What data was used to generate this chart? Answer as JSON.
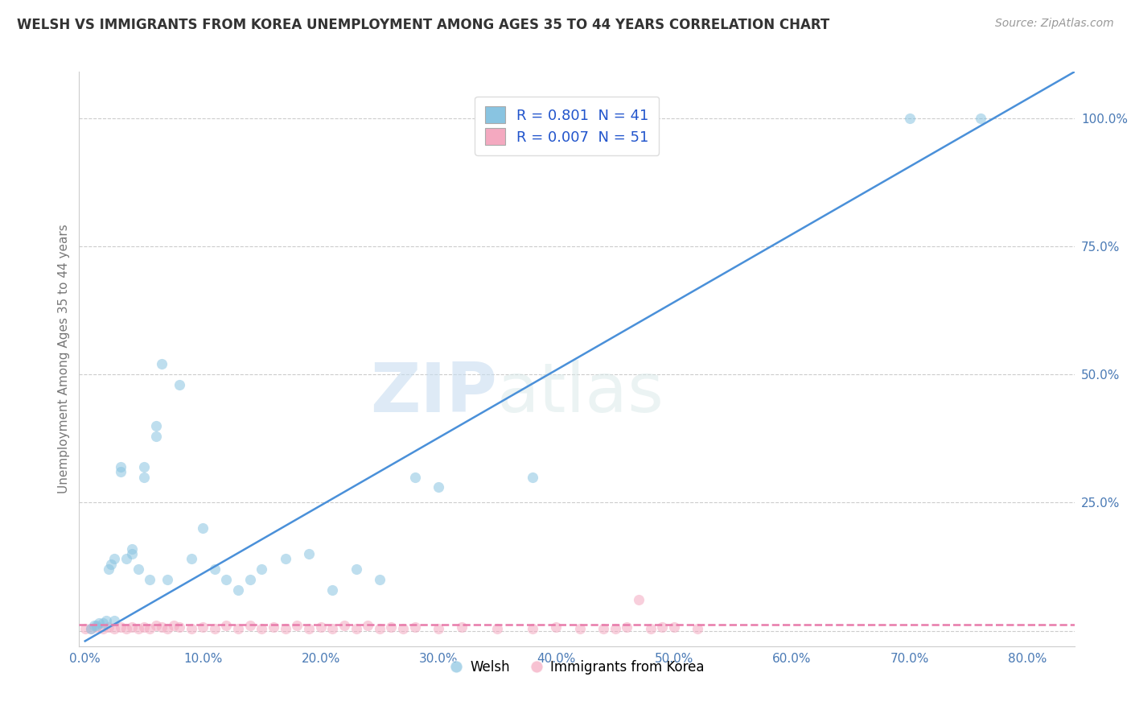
{
  "title": "WELSH VS IMMIGRANTS FROM KOREA UNEMPLOYMENT AMONG AGES 35 TO 44 YEARS CORRELATION CHART",
  "source": "Source: ZipAtlas.com",
  "ylabel": "Unemployment Among Ages 35 to 44 years",
  "x_ticks": [
    0.0,
    0.1,
    0.2,
    0.3,
    0.4,
    0.5,
    0.6,
    0.7,
    0.8
  ],
  "x_tick_labels": [
    "0.0%",
    "10.0%",
    "20.0%",
    "30.0%",
    "40.0%",
    "50.0%",
    "60.0%",
    "70.0%",
    "80.0%"
  ],
  "y_ticks": [
    0.0,
    0.25,
    0.5,
    0.75,
    1.0
  ],
  "y_tick_labels": [
    "",
    "25.0%",
    "50.0%",
    "75.0%",
    "100.0%"
  ],
  "xlim": [
    -0.005,
    0.84
  ],
  "ylim": [
    -0.03,
    1.09
  ],
  "welsh_R": 0.801,
  "welsh_N": 41,
  "korean_R": 0.007,
  "korean_N": 51,
  "welsh_color": "#89c4e1",
  "korean_color": "#f4a9c0",
  "welsh_line_color": "#4a90d9",
  "korean_line_color": "#e87aaa",
  "background_color": "#ffffff",
  "grid_color": "#cccccc",
  "watermark_zip": "ZIP",
  "watermark_atlas": "atlas",
  "welsh_scatter_x": [
    0.005,
    0.008,
    0.01,
    0.012,
    0.015,
    0.018,
    0.02,
    0.022,
    0.025,
    0.025,
    0.03,
    0.03,
    0.035,
    0.04,
    0.04,
    0.045,
    0.05,
    0.05,
    0.055,
    0.06,
    0.06,
    0.065,
    0.07,
    0.08,
    0.09,
    0.1,
    0.11,
    0.12,
    0.13,
    0.14,
    0.15,
    0.17,
    0.19,
    0.21,
    0.23,
    0.25,
    0.28,
    0.3,
    0.38,
    0.7,
    0.76
  ],
  "welsh_scatter_y": [
    0.005,
    0.01,
    0.01,
    0.015,
    0.015,
    0.02,
    0.12,
    0.13,
    0.02,
    0.14,
    0.31,
    0.32,
    0.14,
    0.15,
    0.16,
    0.12,
    0.3,
    0.32,
    0.1,
    0.38,
    0.4,
    0.52,
    0.1,
    0.48,
    0.14,
    0.2,
    0.12,
    0.1,
    0.08,
    0.1,
    0.12,
    0.14,
    0.15,
    0.08,
    0.12,
    0.1,
    0.3,
    0.28,
    0.3,
    1.0,
    1.0
  ],
  "korean_scatter_x": [
    0.0,
    0.005,
    0.01,
    0.015,
    0.02,
    0.025,
    0.03,
    0.035,
    0.04,
    0.045,
    0.05,
    0.055,
    0.06,
    0.065,
    0.07,
    0.075,
    0.08,
    0.09,
    0.1,
    0.11,
    0.12,
    0.13,
    0.14,
    0.15,
    0.16,
    0.17,
    0.18,
    0.19,
    0.2,
    0.21,
    0.22,
    0.23,
    0.24,
    0.25,
    0.26,
    0.27,
    0.28,
    0.3,
    0.32,
    0.35,
    0.38,
    0.4,
    0.42,
    0.44,
    0.46,
    0.48,
    0.5,
    0.52,
    0.47,
    0.49,
    0.45
  ],
  "korean_scatter_y": [
    0.005,
    0.005,
    0.008,
    0.005,
    0.008,
    0.005,
    0.008,
    0.005,
    0.008,
    0.005,
    0.008,
    0.005,
    0.01,
    0.008,
    0.005,
    0.01,
    0.008,
    0.005,
    0.008,
    0.005,
    0.01,
    0.005,
    0.01,
    0.005,
    0.008,
    0.005,
    0.01,
    0.005,
    0.008,
    0.005,
    0.01,
    0.005,
    0.01,
    0.005,
    0.008,
    0.005,
    0.008,
    0.005,
    0.008,
    0.005,
    0.005,
    0.008,
    0.005,
    0.005,
    0.008,
    0.005,
    0.008,
    0.005,
    0.06,
    0.008,
    0.005
  ],
  "welsh_line_x0": 0.0,
  "welsh_line_y0": -0.02,
  "welsh_line_x1": 0.84,
  "welsh_line_y1": 1.09,
  "korean_line_x0": -0.005,
  "korean_line_y0": 0.012,
  "korean_line_x1": 0.84,
  "korean_line_y1": 0.012
}
